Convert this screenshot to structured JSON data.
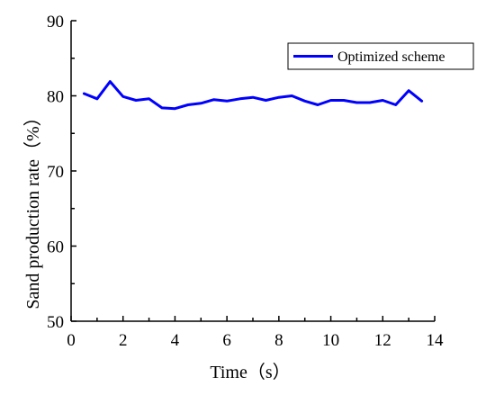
{
  "chart_data": {
    "type": "line",
    "title": "",
    "xlabel": "Time（s）",
    "ylabel": "Sand production rate（%）",
    "xlim": [
      0,
      14
    ],
    "ylim": [
      50,
      90
    ],
    "xticks": [
      "0",
      "2",
      "4",
      "6",
      "8",
      "10",
      "12",
      "14"
    ],
    "yticks": [
      "50",
      "60",
      "70",
      "80",
      "90"
    ],
    "grid": false,
    "legend_position": "top-right",
    "series": [
      {
        "name": "Optimized scheme",
        "color": "#0000ff",
        "x": [
          0.5,
          1.0,
          1.5,
          2.0,
          2.5,
          3.0,
          3.5,
          4.0,
          4.5,
          5.0,
          5.5,
          6.0,
          6.5,
          7.0,
          7.5,
          8.0,
          8.5,
          9.0,
          9.5,
          10.0,
          10.5,
          11.0,
          11.5,
          12.0,
          12.5,
          13.0,
          13.5
        ],
        "values": [
          80.3,
          79.6,
          81.9,
          79.9,
          79.4,
          79.6,
          78.4,
          78.3,
          78.8,
          79.0,
          79.5,
          79.3,
          79.6,
          79.8,
          79.4,
          79.8,
          80.0,
          79.3,
          78.8,
          79.4,
          79.4,
          79.1,
          79.1,
          79.4,
          78.8,
          80.7,
          79.3
        ]
      }
    ]
  }
}
